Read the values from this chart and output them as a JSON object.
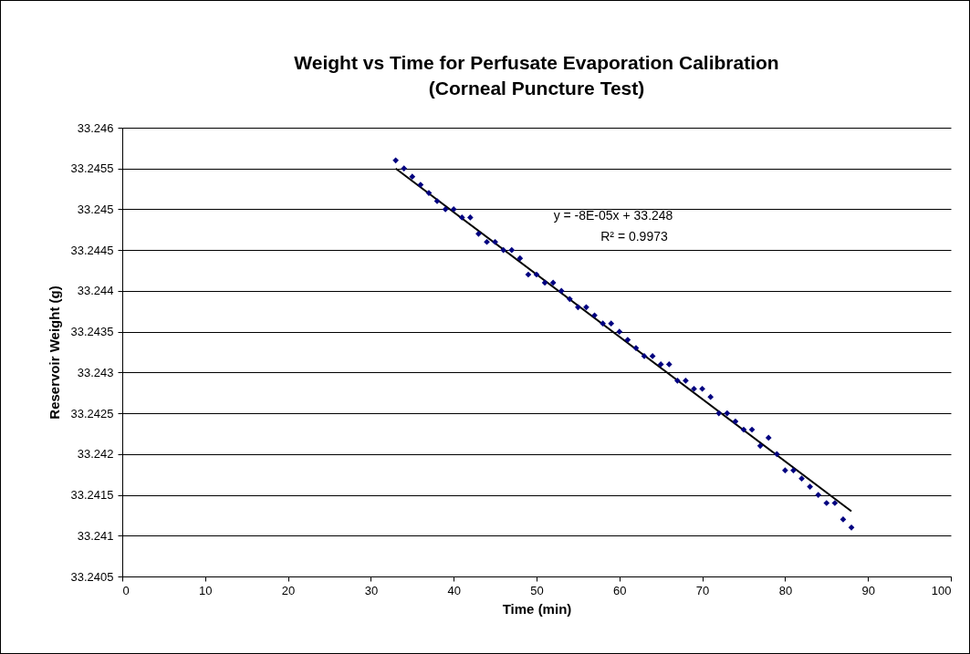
{
  "chart_data": {
    "type": "scatter",
    "title": [
      "Weight vs Time for Perfusate Evaporation Calibration",
      "(Corneal Puncture Test)"
    ],
    "xlabel": "Time (min)",
    "ylabel": "Reservoir Weight (g)",
    "xlim": [
      0,
      100
    ],
    "xticks": [
      0,
      10,
      20,
      30,
      40,
      50,
      60,
      70,
      80,
      90,
      100
    ],
    "ylim": [
      33.2405,
      33.246
    ],
    "yticks": [
      33.2405,
      33.241,
      33.2415,
      33.242,
      33.2425,
      33.243,
      33.2435,
      33.244,
      33.2445,
      33.245,
      33.2455,
      33.246
    ],
    "grid": "y",
    "marker": "diamond",
    "annotations": [
      "y = -8E-05x + 33.248",
      "R² = 0.9973"
    ],
    "series": [
      {
        "color": "#000080",
        "x": [
          33,
          34,
          35,
          36,
          37,
          38,
          39,
          40,
          41,
          42,
          43,
          44,
          45,
          46,
          47,
          48,
          49,
          50,
          51,
          52,
          53,
          54,
          55,
          56,
          57,
          58,
          59,
          60,
          61,
          62,
          63,
          64,
          65,
          66,
          67,
          68,
          69,
          70,
          71,
          72,
          73,
          74,
          75,
          76,
          77,
          78,
          79,
          80,
          81,
          82,
          83,
          84,
          85,
          86,
          87,
          88
        ],
        "values": [
          33.2456,
          33.2455,
          33.2454,
          33.2453,
          33.2452,
          33.2451,
          33.245,
          33.245,
          33.2449,
          33.2449,
          33.2447,
          33.2446,
          33.2446,
          33.2445,
          33.2445,
          33.2444,
          33.2442,
          33.2442,
          33.2441,
          33.2441,
          33.244,
          33.2439,
          33.2438,
          33.2438,
          33.2437,
          33.2436,
          33.2436,
          33.2435,
          33.2434,
          33.2433,
          33.2432,
          33.2432,
          33.2431,
          33.2431,
          33.2429,
          33.2429,
          33.2428,
          33.2428,
          33.2427,
          33.2425,
          33.2425,
          33.2424,
          33.2423,
          33.2423,
          33.2421,
          33.2422,
          33.242,
          33.2418,
          33.2418,
          33.2417,
          33.2416,
          33.2415,
          33.2414,
          33.2414,
          33.2412,
          33.2411
        ]
      },
      {
        "type": "line",
        "marker": "none",
        "color": "#000000",
        "x": [
          33,
          88
        ],
        "values": [
          33.2455,
          33.2413
        ]
      }
    ]
  }
}
